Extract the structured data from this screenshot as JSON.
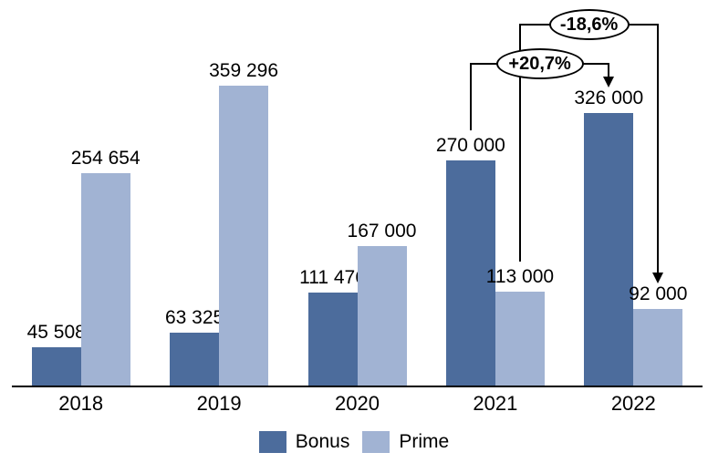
{
  "chart_data": {
    "type": "bar",
    "title": "",
    "xlabel": "",
    "ylabel": "",
    "categories": [
      "2018",
      "2019",
      "2020",
      "2021",
      "2022"
    ],
    "series": [
      {
        "name": "Bonus",
        "color": "#4C6C9C",
        "values": [
          45508,
          63325,
          111476,
          270000,
          326000
        ],
        "value_labels": [
          "45 508",
          "63 325",
          "111 476",
          "270 000",
          "326 000"
        ]
      },
      {
        "name": "Prime",
        "color": "#A1B3D3",
        "values": [
          254654,
          359296,
          167000,
          113000,
          92000
        ],
        "value_labels": [
          "254 654",
          "359 296",
          "167 000",
          "113 000",
          "92 000"
        ]
      }
    ],
    "ylim": [
      0,
      370000
    ],
    "grid": false,
    "y_axis_visible": false,
    "axis_color": "#000000",
    "legend_position": "bottom",
    "annotations": [
      {
        "label": "+20,7%",
        "series": "Bonus",
        "series_index": 0,
        "from_category": "2021",
        "to_category": "2022",
        "direction": "increase"
      },
      {
        "label": "-18,6%",
        "series": "Prime",
        "series_index": 1,
        "from_category": "2021",
        "to_category": "2022",
        "direction": "decrease"
      }
    ]
  },
  "legend": {
    "items": [
      {
        "label": "Bonus",
        "color": "#4C6C9C"
      },
      {
        "label": "Prime",
        "color": "#A1B3D3"
      }
    ]
  }
}
